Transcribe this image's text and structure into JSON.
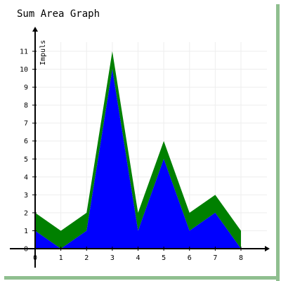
{
  "chart_data": {
    "type": "area",
    "stacked": true,
    "title": "Sum Area Graph",
    "xlabel": "",
    "ylabel": "Impuls",
    "x": [
      0,
      1,
      2,
      3,
      4,
      5,
      6,
      7,
      8
    ],
    "xlim": [
      0,
      8
    ],
    "ylim": [
      0,
      11
    ],
    "x_ticks": [
      "0",
      "1",
      "2",
      "3",
      "4",
      "5",
      "6",
      "7",
      "8"
    ],
    "y_ticks": [
      "0",
      "1",
      "2",
      "3",
      "4",
      "5",
      "6",
      "7",
      "8",
      "9",
      "10",
      "11"
    ],
    "grid": true,
    "series": [
      {
        "values": [
          1,
          0,
          1,
          10,
          1,
          5,
          1,
          2,
          0
        ],
        "color": "#0000ff"
      },
      {
        "values": [
          1,
          1,
          1,
          1,
          1,
          1,
          1,
          1,
          1
        ],
        "color": "#008000"
      }
    ]
  }
}
